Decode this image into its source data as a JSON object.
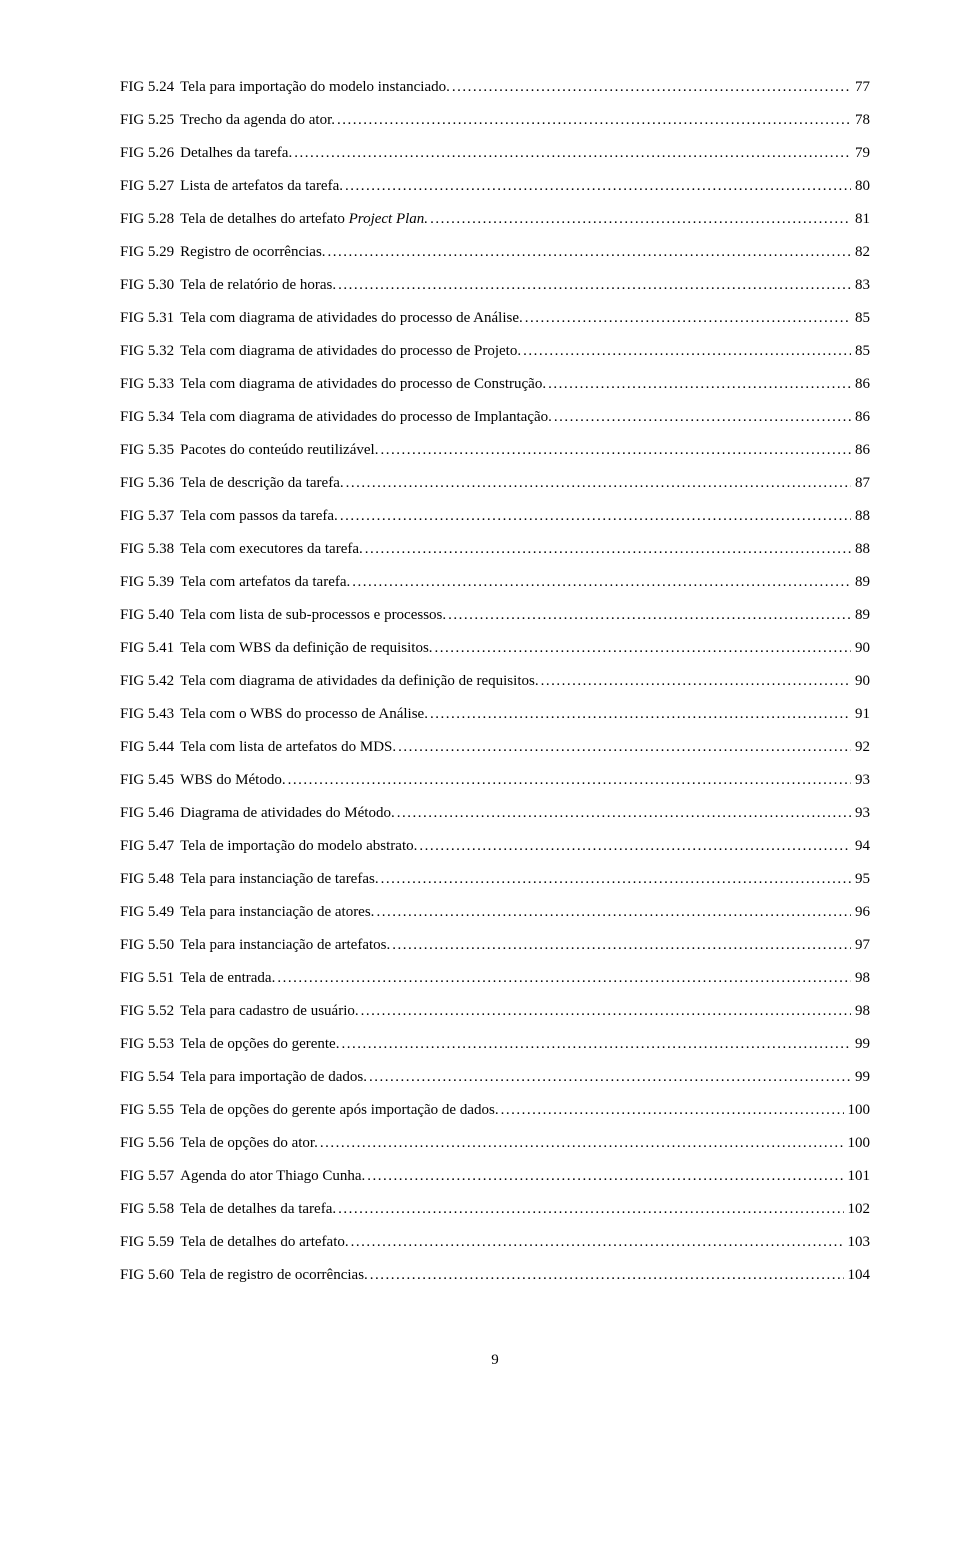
{
  "fig_prefix": "FIG 5.",
  "dot_fill": "........................................................................................................................................................................................................................................................................",
  "entries": [
    {
      "num": "24",
      "caption": "Tela para importação do modelo instanciado.",
      "page": "77"
    },
    {
      "num": "25",
      "caption": "Trecho da agenda do ator.",
      "page": "78"
    },
    {
      "num": "26",
      "caption": "Detalhes da tarefa.",
      "page": "79"
    },
    {
      "num": "27",
      "caption": "Lista de artefatos da tarefa.",
      "page": "80"
    },
    {
      "num": "28",
      "caption": "Tela de detalhes do artefato ",
      "italic_tail": "Project Plan.",
      "page": "81"
    },
    {
      "num": "29",
      "caption": "Registro de ocorrências.",
      "page": "82"
    },
    {
      "num": "30",
      "caption": "Tela de relatório de horas.",
      "page": "83"
    },
    {
      "num": "31",
      "caption": "Tela com diagrama de atividades do processo de Análise.",
      "page": "85"
    },
    {
      "num": "32",
      "caption": "Tela com diagrama de atividades do processo de Projeto.",
      "page": "85"
    },
    {
      "num": "33",
      "caption": "Tela com diagrama de atividades do processo de Construção.",
      "page": "86"
    },
    {
      "num": "34",
      "caption": "Tela com diagrama de atividades do processo de Implantação. ",
      "page": "86"
    },
    {
      "num": "35",
      "caption": "Pacotes do conteúdo reutilizável.",
      "page": "86"
    },
    {
      "num": "36",
      "caption": "Tela de descrição da tarefa.",
      "page": "87"
    },
    {
      "num": "37",
      "caption": "Tela com passos da tarefa. ",
      "page": "88"
    },
    {
      "num": "38",
      "caption": "Tela com executores da tarefa. ",
      "page": "88"
    },
    {
      "num": "39",
      "caption": "Tela com artefatos da tarefa.",
      "page": "89"
    },
    {
      "num": "40",
      "caption": "Tela com lista de sub-processos e processos. ",
      "page": "89"
    },
    {
      "num": "41",
      "caption": "Tela com WBS da definição de requisitos. ",
      "page": "90"
    },
    {
      "num": "42",
      "caption": "Tela com diagrama de atividades da definição de requisitos. ",
      "page": "90"
    },
    {
      "num": "43",
      "caption": "Tela com o WBS do processo de Análise. ",
      "page": "91"
    },
    {
      "num": "44",
      "caption": "Tela com lista de artefatos do MDS.",
      "page": "92"
    },
    {
      "num": "45",
      "caption": "WBS do Método. ",
      "page": "93"
    },
    {
      "num": "46",
      "caption": "Diagrama de atividades do Método. ",
      "page": "93"
    },
    {
      "num": "47",
      "caption": "Tela de importação do modelo abstrato. ",
      "page": "94"
    },
    {
      "num": "48",
      "caption": "Tela para instanciação de tarefas. ",
      "page": "95"
    },
    {
      "num": "49",
      "caption": "Tela para instanciação de atores. ",
      "page": "96"
    },
    {
      "num": "50",
      "caption": "Tela para instanciação de artefatos. ",
      "page": "97"
    },
    {
      "num": "51",
      "caption": "Tela de entrada.",
      "page": "98"
    },
    {
      "num": "52",
      "caption": "Tela para cadastro de usuário.",
      "page": "98"
    },
    {
      "num": "53",
      "caption": "Tela de opções do gerente.",
      "page": "99"
    },
    {
      "num": "54",
      "caption": "Tela para importação de dados. ",
      "page": "99"
    },
    {
      "num": "55",
      "caption": "Tela de opções do gerente após importação de dados.",
      "page": "100"
    },
    {
      "num": "56",
      "caption": "Tela de opções do ator. ",
      "page": "100"
    },
    {
      "num": "57",
      "caption": "Agenda do ator Thiago Cunha. ",
      "page": "101"
    },
    {
      "num": "58",
      "caption": "Tela de detalhes da tarefa.",
      "page": "102"
    },
    {
      "num": "59",
      "caption": "Tela de detalhes do artefato. ",
      "page": "103"
    },
    {
      "num": "60",
      "caption": "Tela de registro de ocorrências. ",
      "page": "104"
    }
  ],
  "page_number": "9"
}
